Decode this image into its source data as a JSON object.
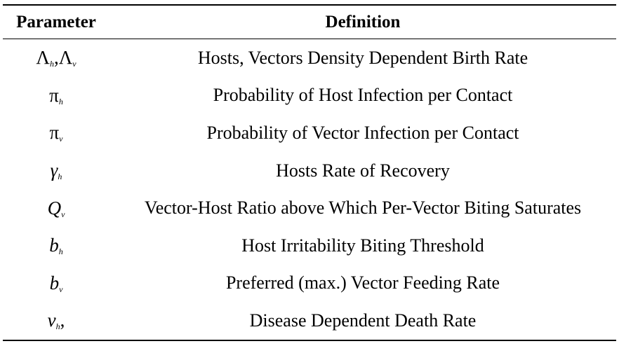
{
  "table": {
    "headers": {
      "parameter": "Parameter",
      "definition": "Definition"
    },
    "rows": [
      {
        "sym1_base": "Λ",
        "sym1_sub": "h",
        "sep": ",",
        "sym2_base": "Λ",
        "sym2_sub": "v",
        "definition": "Hosts, Vectors Density Dependent Birth Rate"
      },
      {
        "sym1_base": "π",
        "sym1_sub": "h",
        "definition": "Probability of Host Infection per Contact"
      },
      {
        "sym1_base": "π",
        "sym1_sub": "v",
        "definition": "Probability of Vector Infection per Contact"
      },
      {
        "sym1_base": "γ",
        "sym1_sub": "h",
        "definition": "Hosts Rate of Recovery"
      },
      {
        "sym1_base": "Q",
        "sym1_sub": "v",
        "definition": "Vector-Host Ratio above Which Per-Vector Biting Saturates"
      },
      {
        "sym1_base": "b",
        "sym1_sub": "h",
        "definition": "Host Irritability Biting Threshold"
      },
      {
        "sym1_base": "b",
        "sym1_sub": "v",
        "definition": "Preferred (max.) Vector Feeding Rate"
      },
      {
        "sym1_base": "ν",
        "sym1_sub": "h",
        "sep": ",",
        "definition": "Disease Dependent Death Rate"
      }
    ]
  }
}
